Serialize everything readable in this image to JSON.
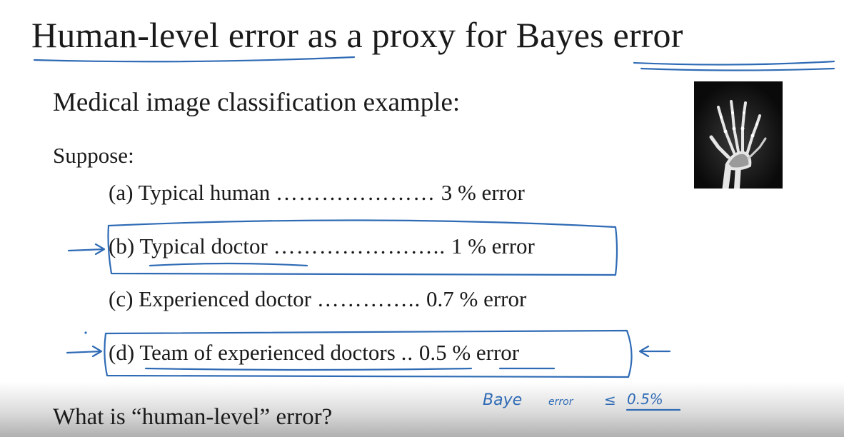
{
  "slide": {
    "title_parts": [
      "Human-level error",
      " as a proxy for ",
      "Bayes error"
    ],
    "subtitle": "Medical image classification example:",
    "suppose": "Suppose:",
    "items": [
      {
        "label": "(a) Typical human",
        "dots": "…………………",
        "value": "3 % error"
      },
      {
        "label": "(b) Typical doctor",
        "dots": "…………………..",
        "value": "1 % error"
      },
      {
        "label": "(c) Experienced doctor",
        "dots": "…………..",
        "value": "0.7 % error"
      },
      {
        "label": "(d) Team of experienced doctors",
        "dots": "..",
        "value": "0.5 % error"
      }
    ],
    "question": "What is “human-level” error?",
    "image": {
      "icon": "hand-xray-icon"
    }
  },
  "annotations": {
    "handwritten_note": {
      "left": "Baye",
      "mid": "error",
      "sym": "≤",
      "right": "0.5%"
    },
    "ink_color": "#2f6bb5"
  }
}
